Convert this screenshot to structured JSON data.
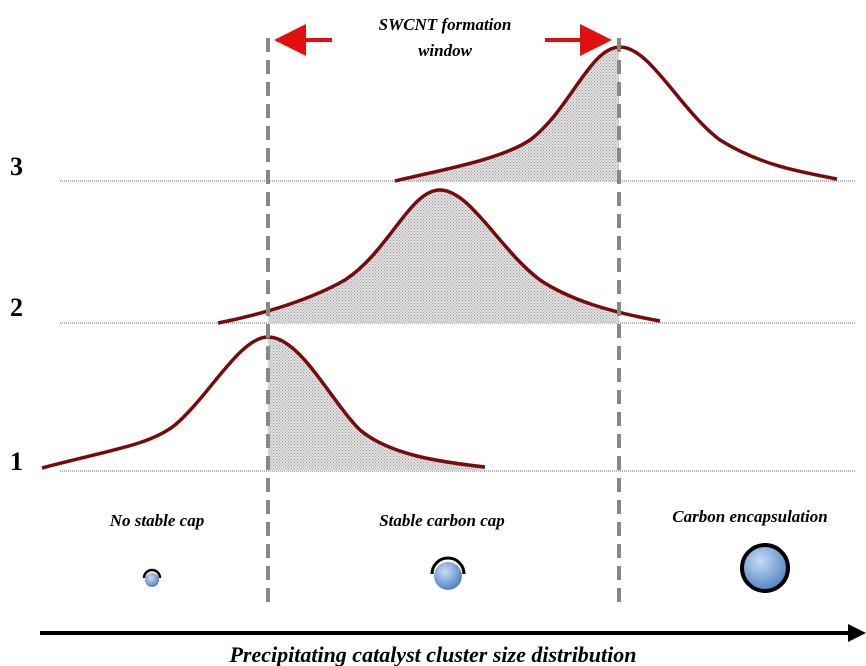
{
  "window_label": {
    "lines": [
      "SWCNT formation",
      "window"
    ]
  },
  "rows": [
    {
      "label": "3"
    },
    {
      "label": "2"
    },
    {
      "label": "1"
    }
  ],
  "regions": [
    {
      "label": "No stable cap"
    },
    {
      "label": "Stable carbon cap"
    },
    {
      "label": "Carbon encapsulation"
    }
  ],
  "axis_label": "Precipitating catalyst cluster size distribution"
}
